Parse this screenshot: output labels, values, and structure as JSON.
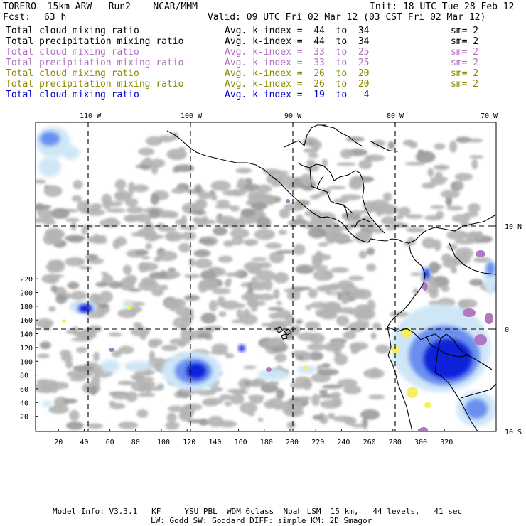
{
  "header": {
    "model": "TORERO  15km ARW   Run2    NCAR/MMM",
    "init": "Init: 18 UTC Tue 28 Feb 12",
    "fcst_label": "Fcst:",
    "fcst_value": "63 h",
    "valid": "Valid: 09 UTC Fri 02 Mar 12 (03 CST Fri 02 Mar 12)"
  },
  "legend": [
    {
      "name": "Total cloud mixing ratio",
      "avg": "Avg. k-index =  44  to  34",
      "sm": "sm= 2",
      "color": "#000000"
    },
    {
      "name": "Total precipitation mixing ratio",
      "avg": "Avg. k-index =  44  to  34",
      "sm": "sm= 2",
      "color": "#000000"
    },
    {
      "name": "Total cloud mixing ratio",
      "avg": "Avg. k-index =  33  to  25",
      "sm": "sm= 2",
      "color": "#b070c0"
    },
    {
      "name": "Total precipitation mixing ratio",
      "avg": "Avg. k-index =  33  to  25",
      "sm": "sm= 2",
      "color": "#b070c0"
    },
    {
      "name": "Total cloud mixing ratio",
      "avg": "Avg. k-index =  26  to  20",
      "sm": "sm= 2",
      "color": "#888800"
    },
    {
      "name": "Total precipitation mixing ratio",
      "avg": "Avg. k-index =  26  to  20",
      "sm": "sm= 2",
      "color": "#888800"
    },
    {
      "name": "Total cloud mixing ratio",
      "avg": "Avg. k-index =  19  to   4",
      "sm": "",
      "color": "#0000cc"
    }
  ],
  "map": {
    "lon_labels": [
      "110 W",
      "100 W",
      "90 W",
      "80 W",
      "70 W"
    ],
    "lat_labels": [
      "10 N",
      "0",
      "10 S"
    ],
    "x_ticks": [
      "20",
      "40",
      "60",
      "80",
      "100",
      "120",
      "140",
      "160",
      "180",
      "200",
      "220",
      "240",
      "260",
      "280",
      "300",
      "320"
    ],
    "y_ticks": [
      "20",
      "40",
      "60",
      "80",
      "100",
      "120",
      "140",
      "160",
      "180",
      "200",
      "220"
    ],
    "colors": {
      "cloud_gray": "#b4b4b4",
      "dark_gray": "#9a9a9a",
      "light_blue": "#cfe6f7",
      "mid_blue": "#6a8ff0",
      "deep_blue": "#1020d8",
      "purple": "#b078c0",
      "yellow": "#f4f060",
      "coast": "#000000",
      "grid": "#000000"
    }
  },
  "footer": {
    "line1": "Model Info: V3.3.1   KF     YSU PBL  WDM 6class  Noah LSM  15 km,   44 levels,   41 sec",
    "line2": "LW: Godd SW: Goddard DIFF: simple KM: 2D Smagor"
  }
}
